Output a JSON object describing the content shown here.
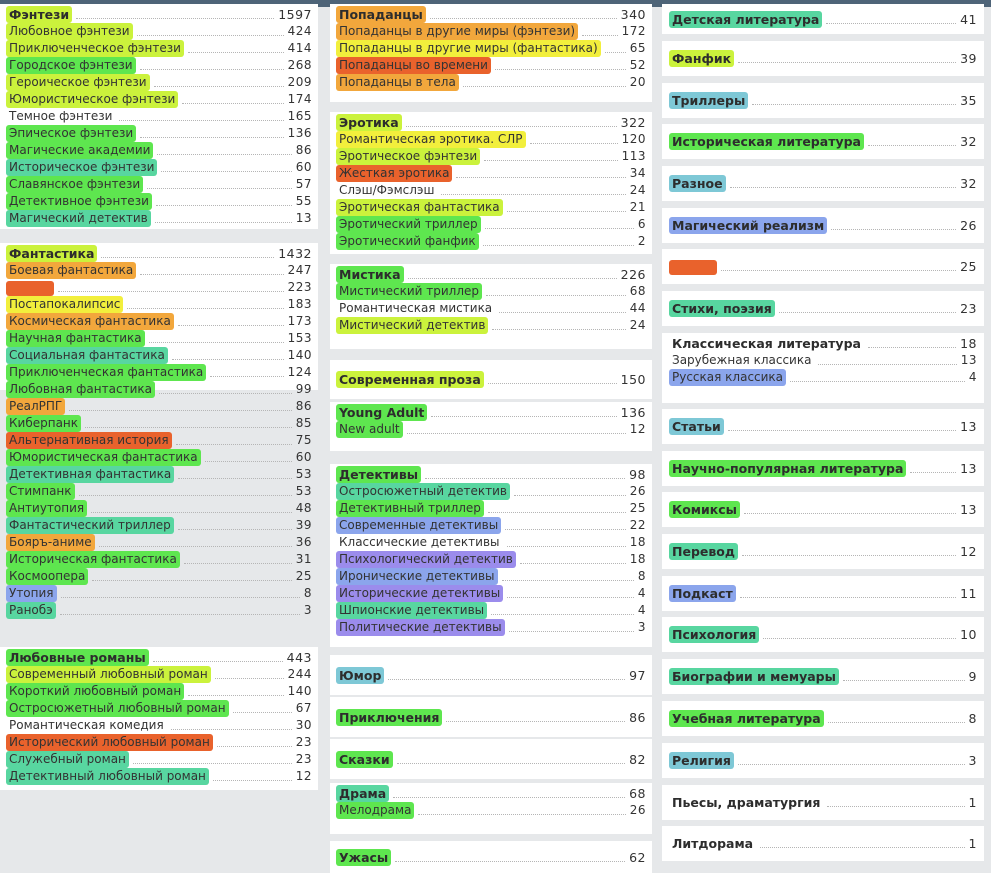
{
  "highlight_colors": {
    "yellow": "#f2ef3c",
    "lime": "#cbf23c",
    "green": "#5ee64f",
    "teal": "#58d6a0",
    "cyan": "#7ec8d6",
    "blue": "#8ba5ec",
    "purple": "#9b8cec",
    "orange": "#f2a73c",
    "red": "#e9622c"
  },
  "col1": [
    {
      "items": [
        {
          "name": "Фэнтези",
          "count": "1597",
          "hl": "lime",
          "h": true
        },
        {
          "name": "Любовное фэнтези",
          "count": "424",
          "hl": "lime"
        },
        {
          "name": "Приключенческое фэнтези",
          "count": "414",
          "hl": "lime"
        },
        {
          "name": "Городское фэнтези",
          "count": "268",
          "hl": "green"
        },
        {
          "name": "Героическое фэнтези",
          "count": "209",
          "hl": "lime"
        },
        {
          "name": "Юмористическое фэнтези",
          "count": "174",
          "hl": "lime"
        },
        {
          "name": "Темное фэнтези",
          "count": "165",
          "hl": "none"
        },
        {
          "name": "Эпическое фэнтези",
          "count": "136",
          "hl": "green"
        },
        {
          "name": "Магические академии",
          "count": "86",
          "hl": "green"
        },
        {
          "name": "Историческое фэнтези",
          "count": "60",
          "hl": "teal"
        },
        {
          "name": "Славянское фэнтези",
          "count": "57",
          "hl": "green"
        },
        {
          "name": "Детективное фэнтези",
          "count": "55",
          "hl": "green"
        },
        {
          "name": "Магический детектив",
          "count": "13",
          "hl": "teal"
        }
      ]
    },
    {
      "items": [
        {
          "name": "Фантастика",
          "count": "1432",
          "hl": "lime",
          "h": true
        },
        {
          "name": "Боевая фантастика",
          "count": "247",
          "hl": "orange"
        },
        {
          "name": "",
          "count": "223",
          "hl": "red"
        },
        {
          "name": "Постапокалипсис",
          "count": "183",
          "hl": "yellow"
        },
        {
          "name": "Космическая фантастика",
          "count": "173",
          "hl": "orange"
        },
        {
          "name": "Научная фантастика",
          "count": "153",
          "hl": "green"
        },
        {
          "name": "Социальная фантастика",
          "count": "140",
          "hl": "teal"
        },
        {
          "name": "Приключенческая фантастика",
          "count": "124",
          "hl": "green"
        },
        {
          "name": "Любовная фантастика",
          "count": "99",
          "hl": "green"
        },
        {
          "name": "РеалРПГ",
          "count": "86",
          "hl": "orange"
        },
        {
          "name": "Киберпанк",
          "count": "85",
          "hl": "green"
        },
        {
          "name": "Альтернативная история",
          "count": "75",
          "hl": "red"
        },
        {
          "name": "Юмористическая фантастика",
          "count": "60",
          "hl": "green"
        },
        {
          "name": "Детективная фантастика",
          "count": "53",
          "hl": "teal"
        },
        {
          "name": "Стимпанк",
          "count": "53",
          "hl": "green"
        },
        {
          "name": "Антиутопия",
          "count": "48",
          "hl": "green"
        },
        {
          "name": "Фантастический триллер",
          "count": "39",
          "hl": "teal"
        },
        {
          "name": "Бояръ-аниме",
          "count": "36",
          "hl": "orange"
        },
        {
          "name": "Историческая фантастика",
          "count": "31",
          "hl": "green"
        },
        {
          "name": "Космоопера",
          "count": "25",
          "hl": "green"
        },
        {
          "name": "Утопия",
          "count": "8",
          "hl": "blue"
        },
        {
          "name": "Ранобэ",
          "count": "3",
          "hl": "teal"
        }
      ]
    },
    {
      "items": [
        {
          "name": "Любовные романы",
          "count": "443",
          "hl": "green",
          "h": true
        },
        {
          "name": "Современный любовный роман",
          "count": "244",
          "hl": "lime"
        },
        {
          "name": "Короткий любовный роман",
          "count": "140",
          "hl": "green"
        },
        {
          "name": "Остросюжетный любовный роман",
          "count": "67",
          "hl": "green"
        },
        {
          "name": "Романтическая комедия",
          "count": "30",
          "hl": "none"
        },
        {
          "name": "Исторический любовный роман",
          "count": "23",
          "hl": "red"
        },
        {
          "name": "Служебный роман",
          "count": "23",
          "hl": "teal"
        },
        {
          "name": "Детективный любовный роман",
          "count": "12",
          "hl": "teal"
        }
      ]
    }
  ],
  "col2": [
    {
      "items": [
        {
          "name": "Попаданцы",
          "count": "340",
          "hl": "orange",
          "h": true
        },
        {
          "name": "Попаданцы в другие миры (фэнтези)",
          "count": "172",
          "hl": "orange"
        },
        {
          "name": "Попаданцы в другие миры (фантастика)",
          "count": "65",
          "hl": "yellow"
        },
        {
          "name": "Попаданцы во времени",
          "count": "52",
          "hl": "red"
        },
        {
          "name": "Попаданцы в тела",
          "count": "20",
          "hl": "orange"
        }
      ]
    },
    {
      "items": [
        {
          "name": "Эротика",
          "count": "322",
          "hl": "lime",
          "h": true
        },
        {
          "name": "Романтическая эротика. СЛР",
          "count": "120",
          "hl": "yellow"
        },
        {
          "name": "Эротическое фэнтези",
          "count": "113",
          "hl": "lime"
        },
        {
          "name": "Жесткая эротика",
          "count": "34",
          "hl": "red"
        },
        {
          "name": "Слэш/Фэмслэш",
          "count": "24",
          "hl": "none"
        },
        {
          "name": "Эротическая фантастика",
          "count": "21",
          "hl": "lime"
        },
        {
          "name": "Эротический триллер",
          "count": "6",
          "hl": "green"
        },
        {
          "name": "Эротический фанфик",
          "count": "2",
          "hl": "green"
        }
      ]
    },
    {
      "items": [
        {
          "name": "Мистика",
          "count": "226",
          "hl": "green",
          "h": true
        },
        {
          "name": "Мистический триллер",
          "count": "68",
          "hl": "green"
        },
        {
          "name": "Романтическая мистика",
          "count": "44",
          "hl": "none"
        },
        {
          "name": "Мистический детектив",
          "count": "24",
          "hl": "lime"
        }
      ]
    },
    {
      "items": [
        {
          "name": "Современная проза",
          "count": "150",
          "hl": "lime",
          "h": true
        }
      ]
    },
    {
      "items": [
        {
          "name": "Young Adult",
          "count": "136",
          "hl": "green",
          "h": true
        },
        {
          "name": "New adult",
          "count": "12",
          "hl": "green"
        }
      ]
    },
    {
      "items": [
        {
          "name": "Детективы",
          "count": "98",
          "hl": "green",
          "h": true
        },
        {
          "name": "Остросюжетный детектив",
          "count": "26",
          "hl": "teal"
        },
        {
          "name": "Детективный триллер",
          "count": "25",
          "hl": "green"
        },
        {
          "name": "Современные детективы",
          "count": "22",
          "hl": "blue"
        },
        {
          "name": "Классические детективы",
          "count": "18",
          "hl": "none"
        },
        {
          "name": "Психологический детектив",
          "count": "18",
          "hl": "purple"
        },
        {
          "name": "Иронические детективы",
          "count": "8",
          "hl": "blue"
        },
        {
          "name": "Исторические детективы",
          "count": "4",
          "hl": "purple"
        },
        {
          "name": "Шпионские детективы",
          "count": "4",
          "hl": "teal"
        },
        {
          "name": "Политические детективы",
          "count": "3",
          "hl": "purple"
        }
      ]
    },
    {
      "items": [
        {
          "name": "Юмор",
          "count": "97",
          "hl": "cyan",
          "h": true
        }
      ]
    },
    {
      "items": [
        {
          "name": "Приключения",
          "count": "86",
          "hl": "green",
          "h": true
        }
      ]
    },
    {
      "items": [
        {
          "name": "Сказки",
          "count": "82",
          "hl": "green",
          "h": true
        }
      ]
    },
    {
      "items": [
        {
          "name": "Драма",
          "count": "68",
          "hl": "teal",
          "h": true
        },
        {
          "name": "Мелодрама",
          "count": "26",
          "hl": "green"
        }
      ]
    },
    {
      "items": [
        {
          "name": "Ужасы",
          "count": "62",
          "hl": "green",
          "h": true
        }
      ]
    }
  ],
  "col3": [
    {
      "items": [
        {
          "name": "Детская литература",
          "count": "41",
          "hl": "teal",
          "h": true
        }
      ]
    },
    {
      "items": [
        {
          "name": "Фанфик",
          "count": "39",
          "hl": "lime",
          "h": true
        }
      ]
    },
    {
      "items": [
        {
          "name": "Триллеры",
          "count": "35",
          "hl": "cyan",
          "h": true
        }
      ]
    },
    {
      "items": [
        {
          "name": "Историческая литература",
          "count": "32",
          "hl": "green",
          "h": true
        }
      ]
    },
    {
      "items": [
        {
          "name": "Разное",
          "count": "32",
          "hl": "cyan",
          "h": true
        }
      ]
    },
    {
      "items": [
        {
          "name": "Магический реализм",
          "count": "26",
          "hl": "blue",
          "h": true
        }
      ]
    },
    {
      "items": [
        {
          "name": "",
          "count": "25",
          "hl": "red",
          "h": true
        }
      ]
    },
    {
      "items": [
        {
          "name": "Стихи, поэзия",
          "count": "23",
          "hl": "teal",
          "h": true
        }
      ]
    },
    {
      "items": [
        {
          "name": "Классическая литература",
          "count": "18",
          "hl": "none",
          "h": true
        },
        {
          "name": "Зарубежная классика",
          "count": "13",
          "hl": "none"
        },
        {
          "name": "Русская классика",
          "count": "4",
          "hl": "blue"
        }
      ]
    },
    {
      "items": [
        {
          "name": "Статьи",
          "count": "13",
          "hl": "cyan",
          "h": true
        }
      ]
    },
    {
      "items": [
        {
          "name": "Научно-популярная литература",
          "count": "13",
          "hl": "green",
          "h": true
        }
      ]
    },
    {
      "items": [
        {
          "name": "Комиксы",
          "count": "13",
          "hl": "green",
          "h": true
        }
      ]
    },
    {
      "items": [
        {
          "name": "Перевод",
          "count": "12",
          "hl": "teal",
          "h": true
        }
      ]
    },
    {
      "items": [
        {
          "name": "Подкаст",
          "count": "11",
          "hl": "blue",
          "h": true
        }
      ]
    },
    {
      "items": [
        {
          "name": "Психология",
          "count": "10",
          "hl": "teal",
          "h": true
        }
      ]
    },
    {
      "items": [
        {
          "name": "Биографии и мемуары",
          "count": "9",
          "hl": "teal",
          "h": true
        }
      ]
    },
    {
      "items": [
        {
          "name": "Учебная литература",
          "count": "8",
          "hl": "green",
          "h": true
        }
      ]
    },
    {
      "items": [
        {
          "name": "Религия",
          "count": "3",
          "hl": "cyan",
          "h": true
        }
      ]
    },
    {
      "items": [
        {
          "name": "Пьесы, драматургия",
          "count": "1",
          "hl": "none",
          "h": true
        }
      ]
    },
    {
      "items": [
        {
          "name": "Литдорама",
          "count": "1",
          "hl": "none",
          "h": true
        }
      ]
    }
  ]
}
